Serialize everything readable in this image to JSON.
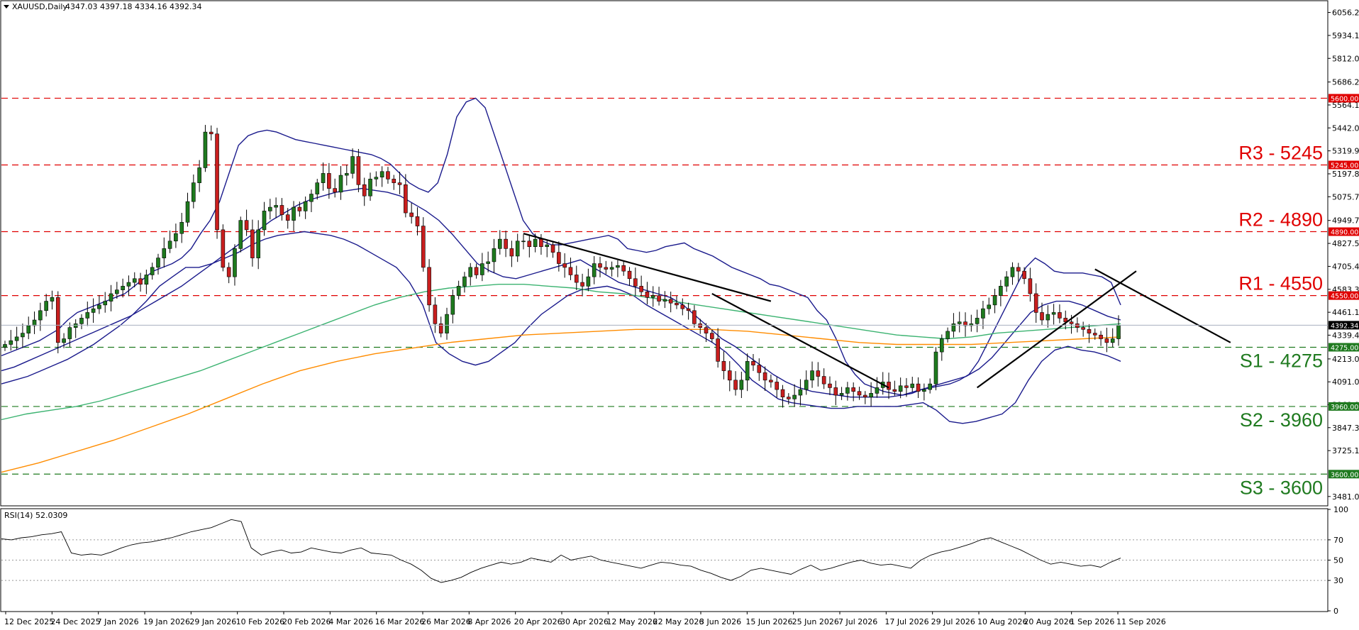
{
  "chart_data": {
    "type": "candlestick",
    "symbol_header": "XAUUSD,Daily",
    "ohlc_header": "4347.03 4397.18 4334.16 4392.34",
    "current_price": 4392.34,
    "current_price_label": "4392.34",
    "ylim": [
      3435,
      6115
    ],
    "price_ticks": [
      "6056.25",
      "5934.10",
      "5812.00",
      "5686.29",
      "5564.10",
      "5442.00",
      "5319.95",
      "5197.80",
      "5075.70",
      "4949.70",
      "4827.55",
      "4705.40",
      "4583.30",
      "4461.15",
      "4339.40",
      "4213.00",
      "4091.05",
      "3969.00",
      "3847.30",
      "3725.15",
      "3481.00"
    ],
    "date_labels": [
      "12 Dec 2025",
      "24 Dec 2025",
      "7 Jan 2026",
      "19 Jan 2026",
      "29 Jan 2026",
      "10 Feb 2026",
      "20 Feb 2026",
      "4 Mar 2026",
      "16 Mar 2026",
      "26 Mar 2026",
      "8 Apr 2026",
      "20 Apr 2026",
      "30 Apr 2026",
      "12 May 2026",
      "22 May 2026",
      "3 Jun 2026",
      "15 Jun 2026",
      "25 Jun 2026",
      "7 Jul 2026",
      "17 Jul 2026",
      "29 Jul 2026",
      "10 Aug 2026",
      "20 Aug 2026",
      "1 Sep 2026",
      "11 Sep 2026"
    ],
    "levels": [
      {
        "value": 5600,
        "tag": "5600.00",
        "name": "",
        "color": "#e00000"
      },
      {
        "value": 5245,
        "tag": "5245.00",
        "name": "R3 - 5245",
        "color": "#e00000"
      },
      {
        "value": 4890,
        "tag": "4890.00",
        "name": "R2 - 4890",
        "color": "#e00000"
      },
      {
        "value": 4550,
        "tag": "4550.00",
        "name": "R1 - 4550",
        "color": "#e00000"
      },
      {
        "value": 4275,
        "tag": "4275.00",
        "name": "S1 - 4275",
        "color": "#1f7a1f"
      },
      {
        "value": 3960,
        "tag": "3960.00",
        "name": "S2 - 3960",
        "color": "#1f7a1f"
      },
      {
        "value": 3600,
        "tag": "3600.00",
        "name": "S3 - 3600",
        "color": "#1f7a1f"
      }
    ],
    "close_series": [
      4290,
      4310,
      4330,
      4350,
      4390,
      4420,
      4470,
      4520,
      4540,
      4300,
      4320,
      4380,
      4400,
      4430,
      4460,
      4480,
      4500,
      4520,
      4560,
      4580,
      4600,
      4620,
      4640,
      4610,
      4660,
      4700,
      4750,
      4800,
      4840,
      4880,
      4940,
      5050,
      5150,
      5230,
      5420,
      5410,
      4900,
      4700,
      4650,
      4800,
      4950,
      4900,
      4750,
      4900,
      5000,
      5020,
      5030,
      4980,
      4950,
      5020,
      5000,
      5050,
      5090,
      5150,
      5200,
      5120,
      5100,
      5190,
      5200,
      5290,
      5140,
      5080,
      5170,
      5180,
      5210,
      5170,
      5150,
      5140,
      4990,
      4970,
      4920,
      4700,
      4500,
      4400,
      4350,
      4450,
      4550,
      4600,
      4650,
      4700,
      4660,
      4720,
      4730,
      4800,
      4850,
      4800,
      4760,
      4840,
      4840,
      4810,
      4850,
      4810,
      4820,
      4780,
      4720,
      4700,
      4660,
      4620,
      4600,
      4650,
      4720,
      4700,
      4690,
      4700,
      4710,
      4680,
      4640,
      4600,
      4570,
      4540,
      4550,
      4520,
      4530,
      4510,
      4500,
      4480,
      4470,
      4400,
      4380,
      4350,
      4320,
      4200,
      4150,
      4100,
      4050,
      4100,
      4200,
      4180,
      4140,
      4100,
      4090,
      4050,
      4010,
      4000,
      4020,
      4050,
      4100,
      4150,
      4120,
      4080,
      4060,
      4020,
      4030,
      4060,
      4040,
      4020,
      4010,
      4030,
      4060,
      4090,
      4050,
      4040,
      4070,
      4060,
      4080,
      4040,
      4050,
      4080,
      4250,
      4320,
      4360,
      4400,
      4410,
      4390,
      4400,
      4430,
      4480,
      4500,
      4550,
      4600,
      4650,
      4700,
      4680,
      4640,
      4560,
      4460,
      4420,
      4450,
      4460,
      4430,
      4410,
      4400,
      4380,
      4370,
      4350,
      4340,
      4320,
      4300,
      4320,
      4392
    ],
    "indicators": [
      {
        "name": "Bollinger upper",
        "color": "#1a1a8c",
        "values": [
          4230,
          4250,
          4270,
          4290,
          4310,
          4340,
          4370,
          4420,
          4460,
          4480,
          4500,
          4520,
          4540,
          4560,
          4600,
          4640,
          4680,
          4700,
          4720,
          4750,
          4800,
          4880,
          4950,
          5050,
          5200,
          5350,
          5400,
          5420,
          5430,
          5420,
          5400,
          5380,
          5370,
          5360,
          5350,
          5340,
          5330,
          5320,
          5310,
          5300,
          5280,
          5250,
          5200,
          5150,
          5120,
          5100,
          5150,
          5300,
          5500,
          5580,
          5600,
          5550,
          5400,
          5250,
          5100,
          4950,
          4880,
          4840,
          4820,
          4820,
          4830,
          4840,
          4850,
          4860,
          4870,
          4850,
          4800,
          4790,
          4780,
          4790,
          4810,
          4820,
          4830,
          4800,
          4780,
          4760,
          4730,
          4700,
          4680,
          4660,
          4640,
          4610,
          4600,
          4580,
          4560,
          4540,
          4470,
          4420,
          4320,
          4200,
          4130,
          4080,
          4060,
          4040,
          4030,
          4020,
          4030,
          4050,
          4060,
          4070,
          4080,
          4100,
          4130,
          4200,
          4300,
          4400,
          4500,
          4600,
          4700,
          4750,
          4720,
          4680,
          4670,
          4670,
          4670,
          4660,
          4650,
          4620,
          4500
        ]
      },
      {
        "name": "Bollinger middle",
        "color": "#1a1a8c",
        "values": [
          4150,
          4170,
          4200,
          4230,
          4260,
          4290,
          4320,
          4350,
          4380,
          4410,
          4440,
          4480,
          4520,
          4560,
          4600,
          4650,
          4700,
          4750,
          4800,
          4850,
          4900,
          4950,
          4990,
          5030,
          5060,
          5080,
          5100,
          5110,
          5120,
          5110,
          5100,
          5080,
          5040,
          5000,
          4950,
          4880,
          4800,
          4720,
          4680,
          4650,
          4640,
          4660,
          4680,
          4700,
          4720,
          4740,
          4700,
          4660,
          4620,
          4600,
          4580,
          4560,
          4540,
          4500,
          4440,
          4380,
          4320,
          4280,
          4230,
          4180,
          4130,
          4090,
          4060,
          4040,
          4030,
          4020,
          4010,
          4010,
          4010,
          4010,
          4020,
          4040,
          4060,
          4080,
          4100,
          4120,
          4160,
          4220,
          4300,
          4380,
          4460,
          4500,
          4520,
          4520,
          4500,
          4470,
          4440,
          4420
        ]
      },
      {
        "name": "Bollinger lower",
        "color": "#1a1a8c",
        "values": [
          4080,
          4100,
          4120,
          4150,
          4180,
          4210,
          4250,
          4290,
          4340,
          4390,
          4450,
          4520,
          4600,
          4650,
          4700,
          4700,
          4720,
          4750,
          4780,
          4820,
          4850,
          4870,
          4880,
          4890,
          4880,
          4870,
          4850,
          4820,
          4780,
          4740,
          4700,
          4620,
          4500,
          4300,
          4240,
          4200,
          4180,
          4200,
          4250,
          4300,
          4380,
          4450,
          4500,
          4550,
          4580,
          4590,
          4600,
          4580,
          4550,
          4500,
          4460,
          4420,
          4380,
          4340,
          4300,
          4250,
          4180,
          4100,
          4050,
          4000,
          3980,
          3970,
          3960,
          3950,
          3950,
          3960,
          3960,
          3960,
          3960,
          3970,
          3980,
          3940,
          3880,
          3870,
          3880,
          3900,
          3920,
          3980,
          4100,
          4200,
          4260,
          4280,
          4260,
          4250,
          4230,
          4200
        ]
      },
      {
        "name": "MA green",
        "color": "#3cb371",
        "values": [
          3890,
          3920,
          3940,
          3960,
          3990,
          4030,
          4070,
          4110,
          4150,
          4200,
          4250,
          4300,
          4350,
          4400,
          4450,
          4500,
          4540,
          4570,
          4590,
          4600,
          4610,
          4610,
          4600,
          4590,
          4570,
          4560,
          4540,
          4520,
          4500,
          4480,
          4460,
          4440,
          4420,
          4400,
          4380,
          4360,
          4340,
          4330,
          4320,
          4330,
          4350,
          4360,
          4370,
          4380,
          4390,
          4400
        ]
      },
      {
        "name": "MA orange",
        "color": "#ff8c00",
        "values": [
          3610,
          3660,
          3720,
          3780,
          3850,
          3920,
          4000,
          4080,
          4150,
          4200,
          4240,
          4270,
          4300,
          4320,
          4340,
          4350,
          4360,
          4370,
          4370,
          4370,
          4360,
          4340,
          4320,
          4300,
          4290,
          4290,
          4290,
          4300,
          4310,
          4320,
          4330
        ]
      }
    ],
    "rsi": {
      "label": "RSI(14) 52.0309",
      "ylim": [
        0,
        100
      ],
      "ticks": [
        "100",
        "70",
        "50",
        "30",
        "0"
      ],
      "tick_values": [
        100,
        70,
        50,
        30,
        0
      ],
      "dotted_levels": [
        70,
        50,
        30
      ],
      "values": [
        71,
        70,
        72,
        73,
        75,
        76,
        78,
        57,
        55,
        56,
        55,
        58,
        62,
        65,
        67,
        68,
        70,
        72,
        75,
        78,
        80,
        82,
        86,
        90,
        88,
        62,
        55,
        58,
        60,
        57,
        58,
        62,
        60,
        58,
        57,
        60,
        62,
        57,
        56,
        55,
        50,
        46,
        40,
        32,
        28,
        30,
        33,
        38,
        42,
        45,
        48,
        46,
        48,
        52,
        50,
        48,
        55,
        50,
        52,
        54,
        50,
        48,
        46,
        44,
        42,
        45,
        48,
        47,
        45,
        44,
        40,
        37,
        33,
        30,
        34,
        40,
        42,
        40,
        38,
        36,
        41,
        45,
        40,
        42,
        45,
        48,
        50,
        47,
        45,
        46,
        44,
        42,
        50,
        55,
        58,
        60,
        63,
        66,
        70,
        72,
        68,
        64,
        60,
        55,
        50,
        46,
        48,
        46,
        44,
        45,
        43,
        48,
        52
      ]
    }
  }
}
